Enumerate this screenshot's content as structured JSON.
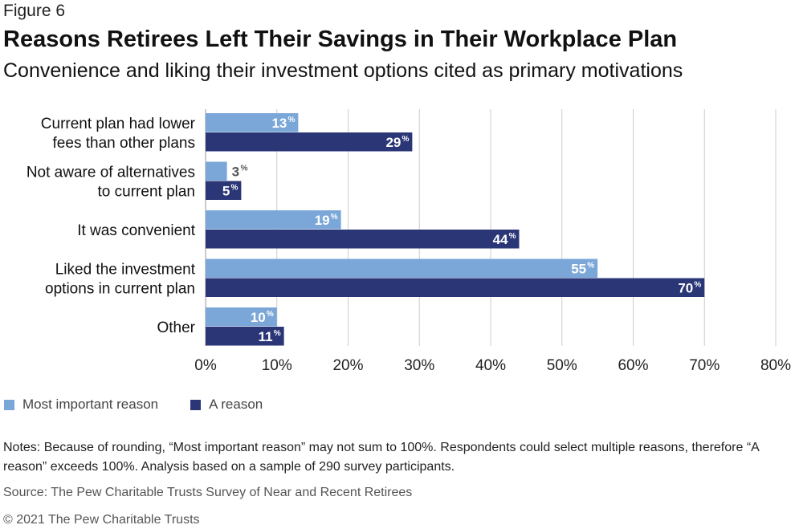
{
  "header": {
    "figure_label": "Figure 6",
    "title": "Reasons Retirees Left Their Savings in Their Workplace Plan",
    "subtitle": "Convenience and liking their investment options cited as primary motivations"
  },
  "colors": {
    "most_important": "#7ba7d8",
    "a_reason": "#2b3677",
    "grid": "#cccccc",
    "axis": "#999999"
  },
  "chart_data": {
    "type": "bar",
    "orientation": "horizontal",
    "categories": [
      [
        "Current plan had lower",
        "fees than other plans"
      ],
      [
        "Not aware of alternatives",
        "to current plan"
      ],
      [
        "It was convenient"
      ],
      [
        "Liked the investment",
        "options in current plan"
      ],
      [
        "Other"
      ]
    ],
    "series": [
      {
        "name": "Most important reason",
        "values": [
          13,
          3,
          19,
          55,
          10
        ]
      },
      {
        "name": "A reason",
        "values": [
          29,
          5,
          44,
          70,
          11
        ]
      }
    ],
    "xlim": [
      0,
      80
    ],
    "xticks": [
      "0%",
      "10%",
      "20%",
      "30%",
      "40%",
      "50%",
      "60%",
      "70%",
      "80%"
    ],
    "value_suffix": "%",
    "grid": true,
    "legend_position": "bottom-left"
  },
  "legend": {
    "items": [
      "Most important reason",
      "A reason"
    ]
  },
  "footer": {
    "notes": "Notes: Because of rounding, “Most important reason” may not sum to 100%. Respondents could select multiple reasons, therefore “A reason” exceeds 100%. Analysis based on a sample of 290 survey participants.",
    "source": "Source: The Pew Charitable Trusts Survey of Near and Recent Retirees",
    "copyright": "© 2021 The Pew Charitable Trusts"
  }
}
